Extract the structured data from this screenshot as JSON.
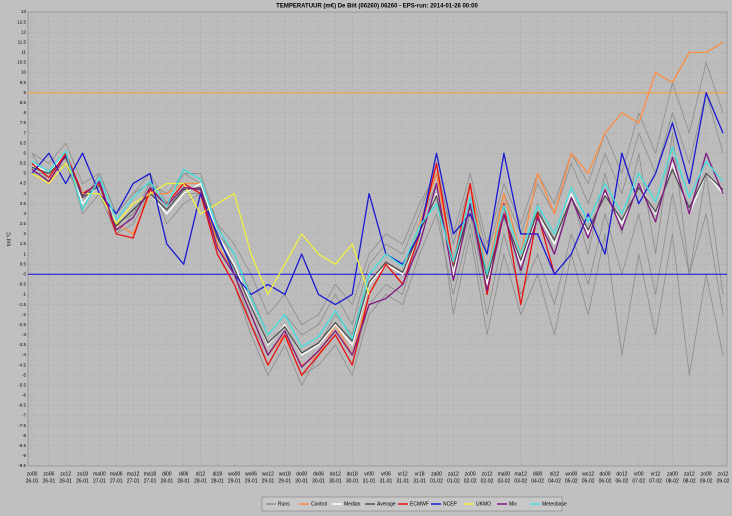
{
  "chart_data": {
    "type": "line",
    "title": "TEMPERATUUR (m€) De Bilt (06260) 06260 - EPS-run: 2014-01-26 00:00",
    "y_label": "tmt °C",
    "categories": [
      "zo00",
      "zo06",
      "zo12",
      "zo18",
      "ma00",
      "ma06",
      "ma12",
      "ma18",
      "di00",
      "di06",
      "di12",
      "di18",
      "wo00",
      "wo06",
      "wo12",
      "wo18",
      "do00",
      "do06",
      "do12",
      "do18",
      "vr00",
      "vr06",
      "vr12",
      "vr18",
      "za00",
      "za12",
      "zo00",
      "zo12",
      "ma00",
      "ma12",
      "di00",
      "di12",
      "wo00",
      "wo12",
      "do00",
      "do12",
      "vr00",
      "vr12",
      "za00",
      "za12",
      "zo00",
      "zo12"
    ],
    "category_dates": [
      "26-01",
      "26-01",
      "26-01",
      "26-01",
      "27-01",
      "27-01",
      "27-01",
      "27-01",
      "28-01",
      "28-01",
      "28-01",
      "28-01",
      "29-01",
      "29-01",
      "29-01",
      "29-01",
      "30-01",
      "30-01",
      "30-01",
      "30-01",
      "31-01",
      "31-01",
      "31-01",
      "31-01",
      "01-02",
      "01-02",
      "02-02",
      "02-02",
      "03-02",
      "03-02",
      "04-02",
      "04-02",
      "05-02",
      "05-02",
      "06-02",
      "06-02",
      "07-02",
      "07-02",
      "08-02",
      "08-02",
      "09-02",
      "09-02"
    ],
    "ylim": [
      -9.5,
      13
    ],
    "yticks": [
      -9.5,
      -9,
      -8.5,
      -8,
      -7.5,
      -7,
      -6.5,
      -6,
      -5.5,
      -5,
      -4.5,
      -4,
      -3.5,
      -3,
      -2.5,
      -2,
      -1.5,
      -1,
      -0.5,
      0,
      0.5,
      1,
      1.5,
      2,
      2.5,
      3,
      3.5,
      4,
      4.5,
      5,
      5.5,
      6,
      6.5,
      7,
      7.5,
      8,
      8.5,
      9,
      9.5,
      10,
      10.5,
      11,
      11.5,
      12,
      12.5,
      13
    ],
    "grid": true,
    "reference_lines": [
      {
        "value": 0,
        "color": "#1010e0"
      },
      {
        "value": 9,
        "color": "#ffa030"
      }
    ],
    "runs": {
      "name": "Runs",
      "color": "#8c8c8c",
      "members": [
        [
          5,
          4.5,
          6,
          3,
          4,
          2,
          3,
          4.5,
          2.5,
          3.5,
          4,
          1.5,
          0,
          -2.5,
          -4,
          -3,
          -5,
          -4.5,
          -3.5,
          -5,
          -2,
          -1,
          -1.5,
          1,
          3,
          -1,
          2.5,
          -2,
          2,
          -1,
          1,
          -1.5,
          2,
          -0.5,
          3,
          0,
          3,
          -1,
          4,
          0,
          3,
          -2
        ],
        [
          6,
          5.5,
          6.5,
          4.5,
          5,
          3,
          4,
          5,
          3.5,
          5,
          5,
          2.5,
          1.5,
          0,
          -2,
          -1,
          -2.5,
          -2,
          -0.5,
          -1.5,
          1,
          2,
          1.5,
          3.5,
          5,
          2,
          5,
          1.5,
          4.5,
          2.5,
          5,
          3.5,
          6,
          4.5,
          7,
          5,
          8,
          6,
          9.5,
          7,
          10.5,
          8
        ],
        [
          5.5,
          5,
          5.5,
          3.5,
          4.5,
          2.5,
          3,
          4,
          3,
          4,
          4,
          1,
          -0.5,
          -3,
          -5,
          -3.5,
          -5.5,
          -4,
          -3,
          -4.5,
          -1.5,
          -0.5,
          -1,
          2,
          4,
          -2,
          2,
          -3,
          1,
          -2,
          0,
          -3,
          1,
          -2,
          2,
          -4,
          1,
          -3,
          2,
          -5,
          0,
          -4
        ],
        [
          5,
          5,
          6,
          4,
          4,
          2,
          2.5,
          4,
          3.5,
          4.5,
          4.5,
          2,
          1,
          -1,
          -3,
          -2,
          -3,
          -2.5,
          -1,
          -2.5,
          0.5,
          1.5,
          1,
          3,
          5.5,
          1.5,
          4.5,
          1,
          4,
          2,
          4.5,
          3,
          5.5,
          3.5,
          6,
          4,
          7,
          5,
          8,
          5.5,
          9,
          6
        ],
        [
          6,
          4.5,
          5.5,
          3.5,
          5,
          3,
          4,
          4.5,
          4,
          5,
          4.5,
          2.5,
          0.5,
          -1.5,
          -3.5,
          -2.5,
          -4,
          -3.5,
          -2,
          -3,
          0,
          0,
          0,
          2.5,
          4.5,
          0,
          3,
          -1,
          3,
          0,
          3.5,
          1,
          4,
          1,
          5,
          2,
          6,
          1,
          7,
          0,
          5,
          -1
        ]
      ]
    },
    "series": [
      {
        "name": "Control",
        "color": "#ff8c40",
        "values": [
          5,
          4.5,
          6,
          4,
          4.5,
          2.5,
          2,
          4,
          4,
          4.5,
          4.5,
          1.5,
          0,
          -2,
          -4,
          -3,
          -4.5,
          -4,
          -2.5,
          -4,
          -1,
          0.5,
          0,
          2.5,
          5,
          0.5,
          4.5,
          0,
          4,
          1,
          5,
          3,
          6,
          5,
          7,
          8,
          7.5,
          10,
          9.5,
          11,
          11,
          11.5
        ]
      },
      {
        "name": "Median",
        "color": "#ffffff",
        "values": [
          5.5,
          5,
          6,
          3.5,
          4.5,
          2.5,
          3.5,
          4,
          3,
          4,
          4.5,
          2,
          0.5,
          -1.5,
          -3.5,
          -2.5,
          -4,
          -3.5,
          -2.5,
          -3.5,
          -0.5,
          0.5,
          0,
          2,
          4,
          0,
          3.5,
          -0.5,
          3,
          0.5,
          3,
          1.5,
          4,
          2,
          4,
          2.5,
          4.5,
          3,
          5.5,
          3,
          5,
          4
        ]
      },
      {
        "name": "Average",
        "color": "#505050",
        "values": [
          5.3,
          5,
          5.8,
          3.8,
          4.4,
          2.4,
          3.2,
          4,
          3.2,
          4.2,
          4.3,
          1.8,
          0.3,
          -1.6,
          -3.4,
          -2.6,
          -3.9,
          -3.4,
          -2.4,
          -3.3,
          -0.4,
          0.6,
          0.1,
          2.1,
          3.9,
          0.4,
          3.4,
          -0.2,
          2.9,
          0.7,
          3.1,
          1.7,
          3.8,
          2.2,
          3.9,
          2.7,
          4.3,
          3.1,
          5.2,
          3.3,
          5,
          4.2
        ]
      },
      {
        "name": "ECMWF",
        "color": "#e81010",
        "values": [
          5.5,
          4.8,
          6,
          4,
          4.5,
          2,
          1.8,
          4.2,
          3.5,
          4.5,
          4,
          1,
          -0.5,
          -2.5,
          -4.5,
          -3,
          -5,
          -4,
          -3,
          -4.5,
          -1,
          0.5,
          -0.5,
          2,
          5.5,
          0.5,
          4.5,
          -1,
          3.5,
          -1.5,
          3,
          0,
          null,
          null,
          null,
          null,
          null,
          null,
          null,
          null,
          null,
          null
        ]
      },
      {
        "name": "NCEP",
        "color": "#1a1ad0",
        "values": [
          5,
          6,
          4.5,
          6,
          4,
          3,
          4.5,
          5,
          1.5,
          0.5,
          4,
          2,
          0,
          -1,
          -0.5,
          -1,
          1,
          -1,
          -1.5,
          -1,
          4,
          1,
          0.5,
          2,
          6,
          2,
          3,
          1,
          6,
          2,
          2,
          0,
          1,
          3,
          1,
          6,
          3.5,
          5,
          7.5,
          4.5,
          9,
          7
        ]
      },
      {
        "name": "UKMO",
        "color": "#f0f040",
        "values": [
          5,
          4.5,
          5.5,
          4,
          4,
          2.5,
          3.5,
          4,
          4.5,
          4.5,
          3,
          3.5,
          4,
          1,
          -1,
          0.5,
          2,
          1,
          0.5,
          1.5,
          -1,
          null,
          null,
          null,
          null,
          null,
          null,
          null,
          null,
          null,
          null,
          null,
          null,
          null,
          null,
          null,
          null,
          null,
          null,
          null,
          null,
          null
        ]
      },
      {
        "name": "Mix",
        "color": "#801880",
        "values": [
          5.2,
          4.6,
          5.9,
          3.9,
          4.6,
          2.2,
          2.8,
          4.3,
          3.4,
          4.3,
          4.2,
          1.3,
          0,
          -2,
          -4,
          -2.8,
          -4.6,
          -3.8,
          -2.8,
          -4,
          -1.5,
          -1.2,
          -0.5,
          1.5,
          4.5,
          -0.3,
          3.5,
          -0.8,
          3,
          0.2,
          2.8,
          1,
          3.8,
          1.8,
          4.2,
          2.2,
          4.5,
          2.6,
          5.8,
          3,
          6,
          4
        ]
      },
      {
        "name": "Meteobase",
        "color": "#40e0e0",
        "values": [
          5.6,
          5.1,
          6.1,
          3.2,
          4.8,
          2.7,
          3.8,
          4.6,
          3.4,
          5.2,
          4.7,
          2.3,
          1,
          -1.2,
          -3,
          -2,
          -3.6,
          -3.1,
          -1.8,
          -3.2,
          0,
          1,
          0.4,
          2.4,
          3.5,
          0.6,
          3.8,
          0,
          3.4,
          1,
          3.4,
          2,
          4.3,
          2.6,
          4.5,
          3,
          5,
          3.6,
          6.3,
          3.8,
          5.6,
          4.6
        ]
      }
    ]
  }
}
